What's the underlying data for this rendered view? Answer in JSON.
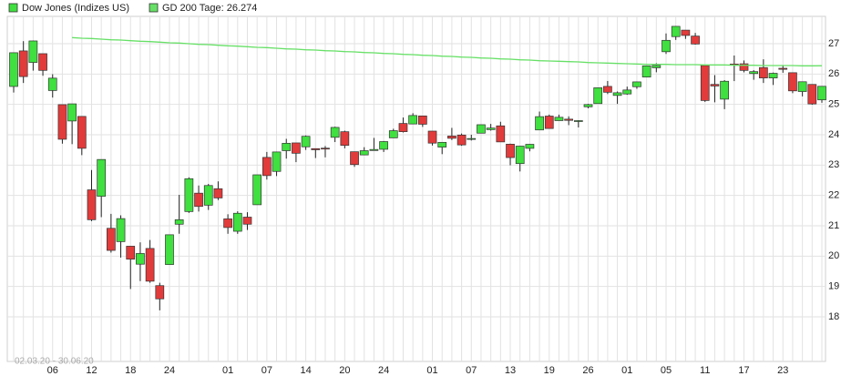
{
  "chart_data": {
    "type": "candlestick",
    "date_range": "02.03.20 - 30.06.20",
    "categories": [
      null,
      null,
      null,
      null,
      "06",
      null,
      null,
      null,
      "12",
      null,
      null,
      null,
      "18",
      null,
      null,
      null,
      "24",
      null,
      null,
      null,
      null,
      null,
      "01",
      null,
      null,
      null,
      "07",
      null,
      null,
      null,
      "14",
      null,
      null,
      null,
      "20",
      null,
      null,
      null,
      "24",
      null,
      null,
      null,
      null,
      "01",
      null,
      null,
      null,
      "07",
      null,
      null,
      null,
      "13",
      null,
      null,
      null,
      "19",
      null,
      null,
      null,
      "26",
      null,
      null,
      null,
      "01",
      null,
      null,
      null,
      "05",
      null,
      null,
      null,
      "11",
      null,
      null,
      null,
      "17",
      null,
      null,
      null,
      "23",
      null,
      null,
      null,
      null
    ],
    "ohlc": {
      "name": "Dow Jones (Indizes US)",
      "up_color": "#3fe03f",
      "down_color": "#e23b3b",
      "open": [
        25.591,
        26.762,
        26.383,
        26.671,
        25.457,
        24.992,
        24.453,
        24.604,
        22.184,
        21.973,
        20.917,
        20.478,
        20.327,
        19.734,
        20.253,
        19.028,
        19.722,
        21.051,
        21.469,
        22.075,
        21.678,
        22.221,
        21.228,
        20.819,
        21.285,
        21.693,
        23.253,
        22.792,
        23.475,
        23.731,
        23.602,
        23.543,
        23.558,
        23.915,
        24.1,
        23.44,
        23.335,
        23.48,
        23.521,
        23.897,
        24.372,
        24.355,
        24.62,
        24.12,
        23.592,
        23.958,
        23.99,
        23.864,
        24.052,
        24.168,
        24.293,
        23.689,
        23.049,
        23.552,
        24.158,
        24.615,
        24.465,
        24.514,
        24.443,
        24.92,
        25.026,
        25.593,
        25.295,
        25.344,
        25.582,
        25.901,
        26.207,
        26.735,
        27.233,
        27.447,
        27.251,
        26.282,
        25.659,
        25.173,
        26.33,
        26.338,
        26.016,
        26.213,
        25.871,
        26.19,
        26.044,
        25.424,
        25.658,
        25.149
      ],
      "high": [
        26.706,
        27.084,
        27.102,
        26.671,
        25.994,
        24.992,
        25.018,
        24.604,
        22.837,
        23.186,
        21.393,
        21.345,
        20.327,
        20.454,
        20.531,
        19.122,
        20.704,
        22.019,
        22.596,
        22.327,
        22.378,
        22.463,
        21.38,
        21.477,
        21.447,
        22.68,
        23.433,
        23.443,
        23.865,
        23.731,
        23.977,
        23.543,
        23.628,
        24.265,
        24.134,
        23.44,
        23.589,
        23.896,
        23.793,
        24.197,
        24.568,
        24.71,
        24.62,
        24.12,
        23.754,
        24.226,
        24.041,
        24.0,
        24.334,
        24.357,
        24.428,
        23.707,
        23.63,
        23.692,
        24.764,
        24.665,
        24.663,
        24.606,
        24.479,
        25.017,
        25.555,
        25.771,
        25.426,
        25.585,
        25.751,
        26.27,
        26.356,
        27.338,
        27.58,
        27.447,
        27.355,
        26.282,
        25.965,
        25.8,
        26.611,
        26.447,
        26.129,
        26.485,
        26.049,
        26.289,
        26.044,
        25.746,
        25.658,
        25.599
      ],
      "low": [
        25.391,
        25.706,
        26.113,
        25.943,
        25.226,
        23.706,
        23.69,
        23.328,
        21.154,
        21.285,
        20.116,
        19.952,
        18.917,
        19.177,
        19.122,
        18.214,
        19.722,
        20.737,
        21.424,
        21.469,
        21.522,
        21.848,
        20.736,
        20.735,
        20.863,
        21.693,
        22.523,
        22.639,
        23.213,
        23.097,
        23.5,
        23.233,
        23.255,
        23.759,
        23.552,
        22.942,
        23.335,
        23.48,
        23.431,
        23.897,
        24.075,
        24.355,
        24.258,
        23.644,
        23.361,
        23.827,
        23.637,
        23.81,
        24.052,
        24.136,
        23.761,
        22.994,
        22.79,
        23.454,
        24.158,
        24.206,
        24.465,
        24.317,
        24.241,
        24.872,
        25.026,
        25.341,
        25.016,
        25.316,
        25.513,
        25.89,
        26.059,
        26.662,
        27.125,
        27.159,
        26.97,
        25.082,
        25.069,
        24.843,
        25.768,
        26.057,
        25.812,
        25.706,
        25.64,
        26.043,
        25.37,
        25.264,
        24.989,
        25.052
      ],
      "close": [
        26.703,
        25.917,
        27.091,
        26.121,
        25.865,
        23.851,
        25.018,
        23.553,
        21.2,
        23.185,
        20.189,
        21.237,
        19.899,
        20.087,
        19.174,
        18.592,
        20.704,
        21.2,
        22.552,
        21.637,
        22.327,
        21.917,
        20.943,
        21.413,
        21.052,
        22.68,
        22.654,
        23.433,
        23.719,
        23.39,
        23.949,
        23.505,
        23.538,
        24.242,
        23.65,
        23.018,
        23.475,
        23.515,
        23.775,
        24.134,
        24.101,
        24.634,
        24.346,
        23.724,
        23.75,
        23.883,
        23.665,
        23.876,
        24.331,
        24.221,
        23.764,
        23.248,
        23.625,
        23.685,
        24.597,
        24.206,
        24.576,
        24.474,
        24.465,
        24.995,
        25.548,
        25.4,
        25.383,
        25.475,
        25.742,
        26.27,
        26.282,
        27.111,
        27.572,
        27.272,
        26.99,
        25.128,
        25.606,
        25.763,
        26.29,
        26.12,
        26.08,
        25.871,
        26.025,
        26.156,
        25.446,
        25.746,
        25.016,
        25.596
      ]
    },
    "overlays": [
      {
        "name": "GD 200 Tage: 26.274",
        "color": "#66e066",
        "values": [
          null,
          null,
          null,
          null,
          null,
          null,
          27.2,
          27.18,
          27.17,
          27.15,
          27.13,
          27.12,
          27.1,
          27.08,
          27.07,
          27.05,
          27.03,
          27.02,
          27.0,
          26.98,
          26.97,
          26.95,
          26.93,
          26.92,
          26.9,
          26.88,
          26.87,
          26.85,
          26.83,
          26.82,
          26.8,
          26.79,
          26.77,
          26.76,
          26.74,
          26.73,
          26.71,
          26.7,
          26.68,
          26.67,
          26.65,
          26.64,
          26.62,
          26.61,
          26.59,
          26.58,
          26.56,
          26.55,
          26.53,
          26.52,
          26.5,
          26.49,
          26.47,
          26.46,
          26.44,
          26.43,
          26.42,
          26.41,
          26.4,
          26.38,
          26.37,
          26.36,
          26.35,
          26.34,
          26.33,
          26.32,
          26.32,
          26.32,
          26.31,
          26.31,
          26.31,
          26.3,
          26.3,
          26.3,
          26.29,
          26.29,
          26.29,
          26.28,
          26.28,
          26.28,
          26.28,
          26.27,
          26.27,
          26.274
        ]
      }
    ],
    "ylim": [
      16.53,
      27.9
    ],
    "yticks": [
      18,
      19,
      20,
      21,
      22,
      23,
      24,
      25,
      26,
      27
    ],
    "grid": true
  }
}
